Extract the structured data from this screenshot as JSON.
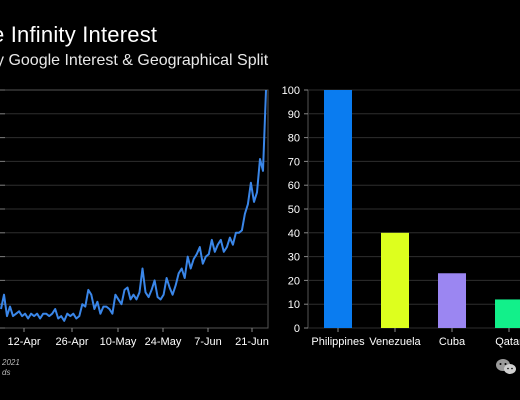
{
  "header": {
    "title": "e Infinity Interest",
    "subtitle": "y Google Interest & Geographical Split"
  },
  "footer": {
    "line1": "2021",
    "line2": "ds"
  },
  "chart_data": [
    {
      "type": "line",
      "x_tick_labels": [
        "12-Apr",
        "26-Apr",
        "10-May",
        "24-May",
        "7-Jun",
        "21-Jun"
      ],
      "grid": true,
      "color": "#3a86e8",
      "values": [
        8,
        14,
        5,
        9,
        5,
        6,
        7,
        5,
        6,
        4,
        6,
        5,
        6,
        4,
        6,
        6,
        5,
        6,
        8,
        4,
        5,
        3,
        6,
        5,
        6,
        4,
        5,
        10,
        9,
        16,
        14,
        8,
        11,
        6,
        9,
        9,
        8,
        6,
        14,
        12,
        10,
        16,
        17,
        12,
        14,
        12,
        15,
        25,
        15,
        13,
        16,
        20,
        13,
        12,
        14,
        21,
        17,
        14,
        18,
        23,
        25,
        21,
        30,
        25,
        29,
        31,
        34,
        27,
        30,
        31,
        37,
        32,
        35,
        37,
        32,
        34,
        38,
        35,
        40,
        40,
        41,
        48,
        52,
        61,
        53,
        57,
        71,
        66,
        100
      ]
    },
    {
      "type": "bar",
      "categories": [
        "Philippines",
        "Venezuela",
        "Cuba",
        "Qatar"
      ],
      "values": [
        100,
        40,
        23,
        12
      ],
      "colors": [
        "#0a7cf0",
        "#ddff1e",
        "#9b86f2",
        "#12f08a"
      ],
      "ylim": [
        0,
        100
      ],
      "yticks": [
        0,
        10,
        20,
        30,
        40,
        50,
        60,
        70,
        80,
        90,
        100
      ],
      "grid": true
    }
  ]
}
